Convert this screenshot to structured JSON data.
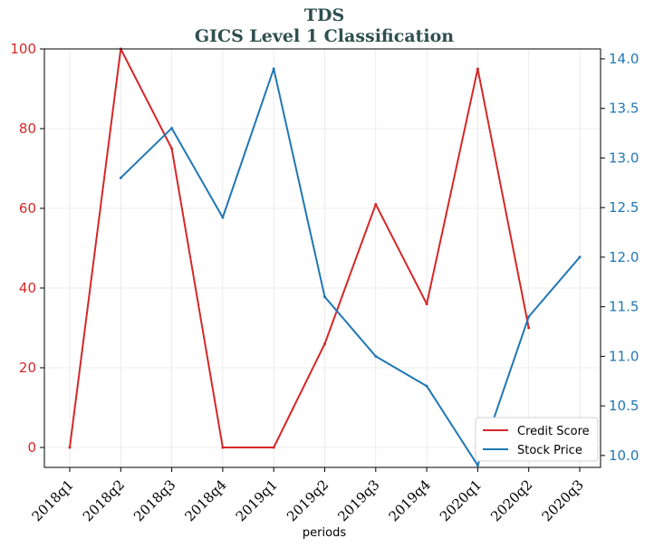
{
  "chart_data": {
    "type": "line",
    "title_line1": "TDS",
    "title_line2": "GICS Level 1 Classification",
    "xlabel": "periods",
    "categories": [
      "2018q1",
      "2018q2",
      "2018q3",
      "2018q4",
      "2019q1",
      "2019q2",
      "2019q3",
      "2019q4",
      "2020q1",
      "2020q2",
      "2020q3"
    ],
    "left_axis": {
      "ylim": [
        -5,
        100
      ],
      "ticks": [
        0,
        20,
        40,
        60,
        80,
        100
      ],
      "color": "#d62728"
    },
    "right_axis": {
      "ylim": [
        9.88,
        14.1
      ],
      "ticks": [
        "10.0",
        "10.5",
        "11.0",
        "11.5",
        "12.0",
        "12.5",
        "13.0",
        "13.5",
        "14.0"
      ],
      "color": "#1f77b4"
    },
    "series": [
      {
        "name": "Credit Score",
        "axis": "left",
        "color": "#d62728",
        "values": [
          0,
          100,
          75,
          0,
          0,
          26,
          61,
          36,
          95,
          30,
          null
        ]
      },
      {
        "name": "Stock Price",
        "axis": "right",
        "color": "#1f77b4",
        "values": [
          null,
          12.8,
          13.3,
          12.4,
          13.9,
          11.6,
          11.0,
          10.7,
          9.9,
          11.4,
          12.0
        ]
      }
    ],
    "grid": true,
    "legend_position": "lower-right"
  }
}
